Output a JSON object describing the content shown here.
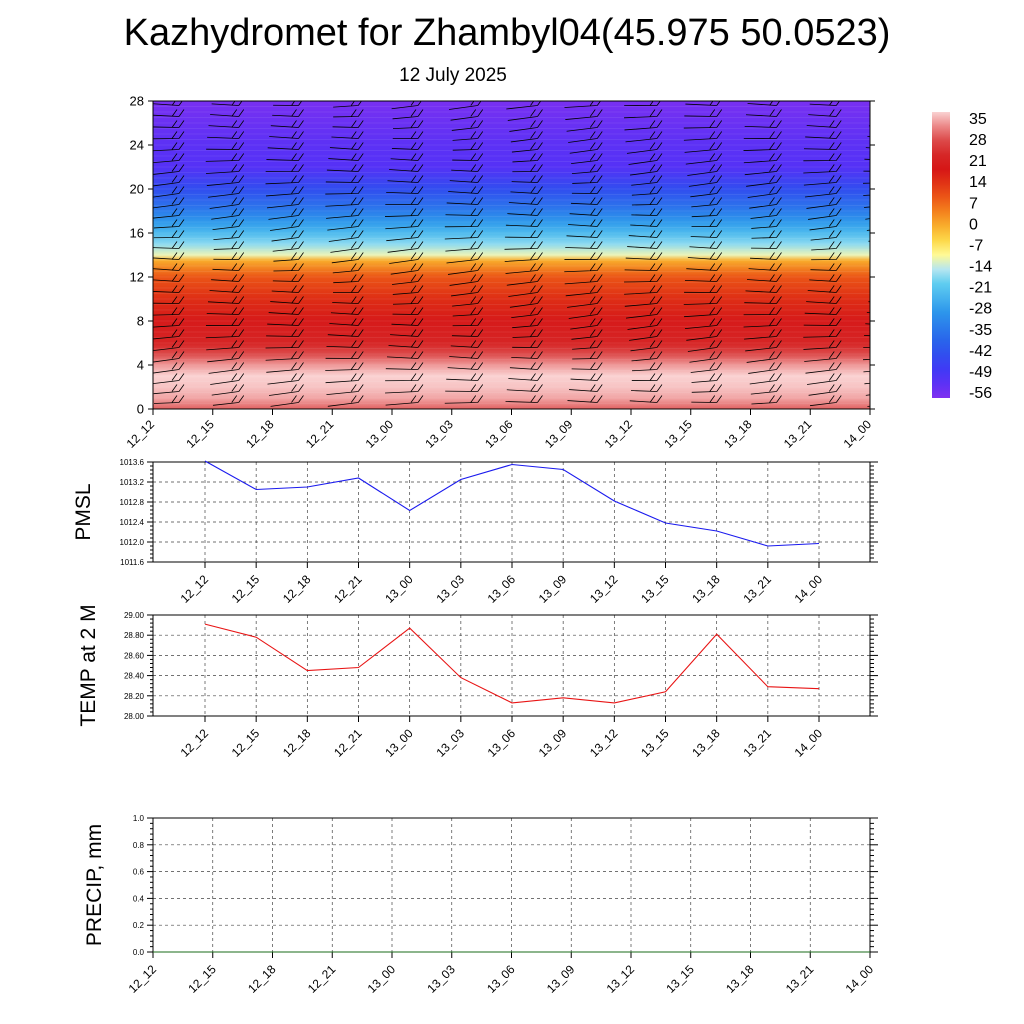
{
  "title": "Kazhydromet for Zhambyl04(45.975 50.0523)",
  "subtitle": "12 July 2025",
  "colors": {
    "pmsl_line": "#1a1aee",
    "temp_line": "#e81414",
    "precip_line": "#1a6b1a",
    "grid": "#444444",
    "barb": "#000000"
  },
  "chart_data": [
    {
      "type": "heatmap",
      "name": "vertical-profile",
      "x": [
        "12_12",
        "12_15",
        "12_18",
        "12_21",
        "13_00",
        "13_03",
        "13_06",
        "13_09",
        "13_12",
        "13_15",
        "13_18",
        "13_21",
        "14_00"
      ],
      "y_ticks": [
        "0",
        "4",
        "8",
        "12",
        "16",
        "20",
        "24",
        "28"
      ],
      "ylim": [
        0,
        28
      ],
      "colorbar": {
        "labels": [
          "35",
          "28",
          "21",
          "14",
          "7",
          "0",
          "-7",
          "-14",
          "-21",
          "-28",
          "-35",
          "-42",
          "-49",
          "-56"
        ],
        "range": [
          -63,
          38
        ]
      },
      "temperature_profile": [
        {
          "level": 0,
          "value": 30
        },
        {
          "level": 1,
          "value": 35
        },
        {
          "level": 2,
          "value": 37
        },
        {
          "level": 3,
          "value": 38
        },
        {
          "level": 4,
          "value": 34
        },
        {
          "level": 5,
          "value": 28
        },
        {
          "level": 6,
          "value": 22
        },
        {
          "level": 8,
          "value": 19
        },
        {
          "level": 10,
          "value": 14
        },
        {
          "level": 12,
          "value": 8
        },
        {
          "level": 13.5,
          "value": -2
        },
        {
          "level": 14,
          "value": -14
        },
        {
          "level": 15,
          "value": -20
        },
        {
          "level": 16,
          "value": -26
        },
        {
          "level": 17,
          "value": -32
        },
        {
          "level": 18,
          "value": -38
        },
        {
          "level": 20,
          "value": -48
        },
        {
          "level": 22,
          "value": -57
        },
        {
          "level": 24,
          "value": -58
        },
        {
          "level": 26,
          "value": -60
        },
        {
          "level": 28,
          "value": -62
        }
      ],
      "wind_barb_levels": [
        0,
        1,
        2,
        3,
        4,
        5,
        6,
        7,
        8,
        9,
        10,
        11,
        12,
        13,
        14,
        15,
        16,
        17,
        18,
        19,
        20,
        21,
        22,
        23,
        24,
        25,
        26,
        27
      ]
    },
    {
      "type": "line",
      "ylabel": "PMSL",
      "x": [
        "12_12",
        "12_15",
        "12_18",
        "12_21",
        "13_00",
        "13_03",
        "13_06",
        "13_09",
        "13_12",
        "13_15",
        "13_18",
        "13_21",
        "14_00"
      ],
      "values": [
        1013.62,
        1013.05,
        1013.1,
        1013.28,
        1012.63,
        1013.25,
        1013.55,
        1013.45,
        1012.82,
        1012.38,
        1012.22,
        1011.92,
        1011.97
      ],
      "ylim": [
        1011.6,
        1013.6
      ],
      "y_ticks": [
        "1011.6",
        "1012.0",
        "1012.4",
        "1012.8",
        "1013.2",
        "1013.6"
      ],
      "grid": true
    },
    {
      "type": "line",
      "ylabel": "TEMP at 2 M",
      "x": [
        "12_12",
        "12_15",
        "12_18",
        "12_21",
        "13_00",
        "13_03",
        "13_06",
        "13_09",
        "13_12",
        "13_15",
        "13_18",
        "13_21",
        "14_00"
      ],
      "values": [
        28.91,
        28.78,
        28.45,
        28.48,
        28.87,
        28.38,
        28.13,
        28.18,
        28.13,
        28.24,
        28.81,
        28.29,
        28.27
      ],
      "ylim": [
        28.0,
        29.0
      ],
      "y_ticks": [
        "28.00",
        "28.20",
        "28.40",
        "28.60",
        "28.80",
        "29.00"
      ],
      "grid": true
    },
    {
      "type": "line",
      "ylabel": "PRECIP, mm",
      "x": [
        "12_12",
        "12_15",
        "12_18",
        "12_21",
        "13_00",
        "13_03",
        "13_06",
        "13_09",
        "13_12",
        "13_15",
        "13_18",
        "13_21",
        "14_00"
      ],
      "values": [
        0,
        0,
        0,
        0,
        0,
        0,
        0,
        0,
        0,
        0,
        0,
        0,
        0
      ],
      "ylim": [
        0,
        1.0
      ],
      "y_ticks": [
        "0.0",
        "0.2",
        "0.4",
        "0.6",
        "0.8",
        "1.0"
      ],
      "grid": true
    }
  ]
}
